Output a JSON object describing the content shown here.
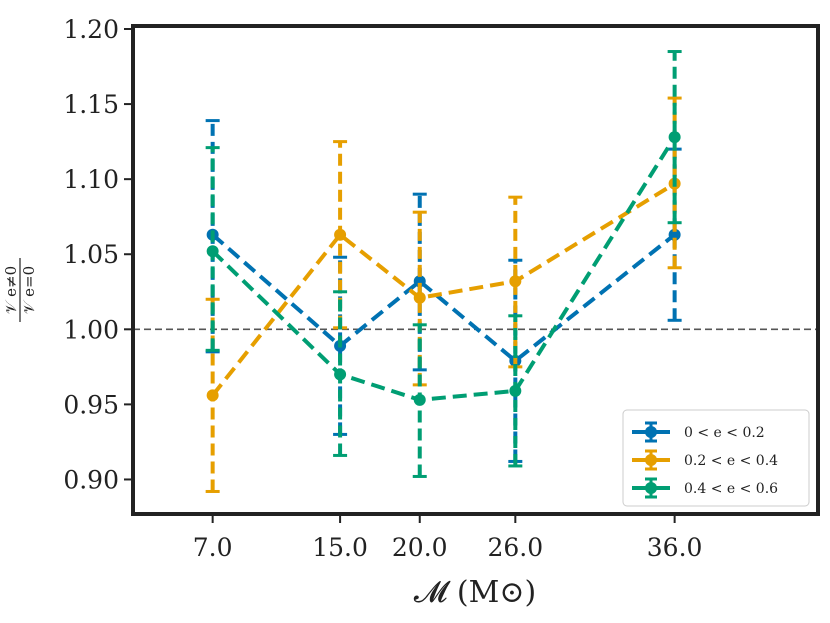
{
  "chart_data": {
    "type": "line",
    "xlabel": "𝓜 (M⊙)",
    "ylabel_num": "𝒱 e≠0",
    "ylabel_den": "𝒱 e=0",
    "x": [
      7.0,
      15.0,
      20.0,
      26.0,
      36.0
    ],
    "x_tick_labels": [
      "7.0",
      "15.0",
      "20.0",
      "26.0",
      "36.0"
    ],
    "y_ticks": [
      0.9,
      0.95,
      1.0,
      1.05,
      1.1,
      1.15,
      1.2
    ],
    "y_tick_labels": [
      "0.90",
      "0.95",
      "1.00",
      "1.05",
      "1.10",
      "1.15",
      "1.20"
    ],
    "xlim": [
      2.0,
      45.0
    ],
    "ylim": [
      0.877,
      1.202
    ],
    "reference_line": 1.0,
    "grid": false,
    "legend_position": "bottom-right",
    "series": [
      {
        "name": "0 < e < 0.2",
        "color": "#0072b2",
        "values": [
          1.063,
          0.989,
          1.032,
          0.979,
          1.063
        ],
        "err_low": [
          0.985,
          0.93,
          0.973,
          0.912,
          1.006
        ],
        "err_high": [
          1.139,
          1.048,
          1.09,
          1.046,
          1.12
        ]
      },
      {
        "name": "0.2 < e < 0.4",
        "color": "#e69f00",
        "values": [
          0.956,
          1.063,
          1.021,
          1.032,
          1.097
        ],
        "err_low": [
          0.892,
          1.001,
          0.963,
          0.975,
          1.041
        ],
        "err_high": [
          1.02,
          1.125,
          1.078,
          1.088,
          1.154
        ]
      },
      {
        "name": "0.4 < e < 0.6",
        "color": "#009e73",
        "values": [
          1.052,
          0.97,
          0.953,
          0.959,
          1.128
        ],
        "err_low": [
          0.986,
          0.916,
          0.902,
          0.909,
          1.071
        ],
        "err_high": [
          1.121,
          1.025,
          1.003,
          1.009,
          1.185
        ]
      }
    ]
  }
}
